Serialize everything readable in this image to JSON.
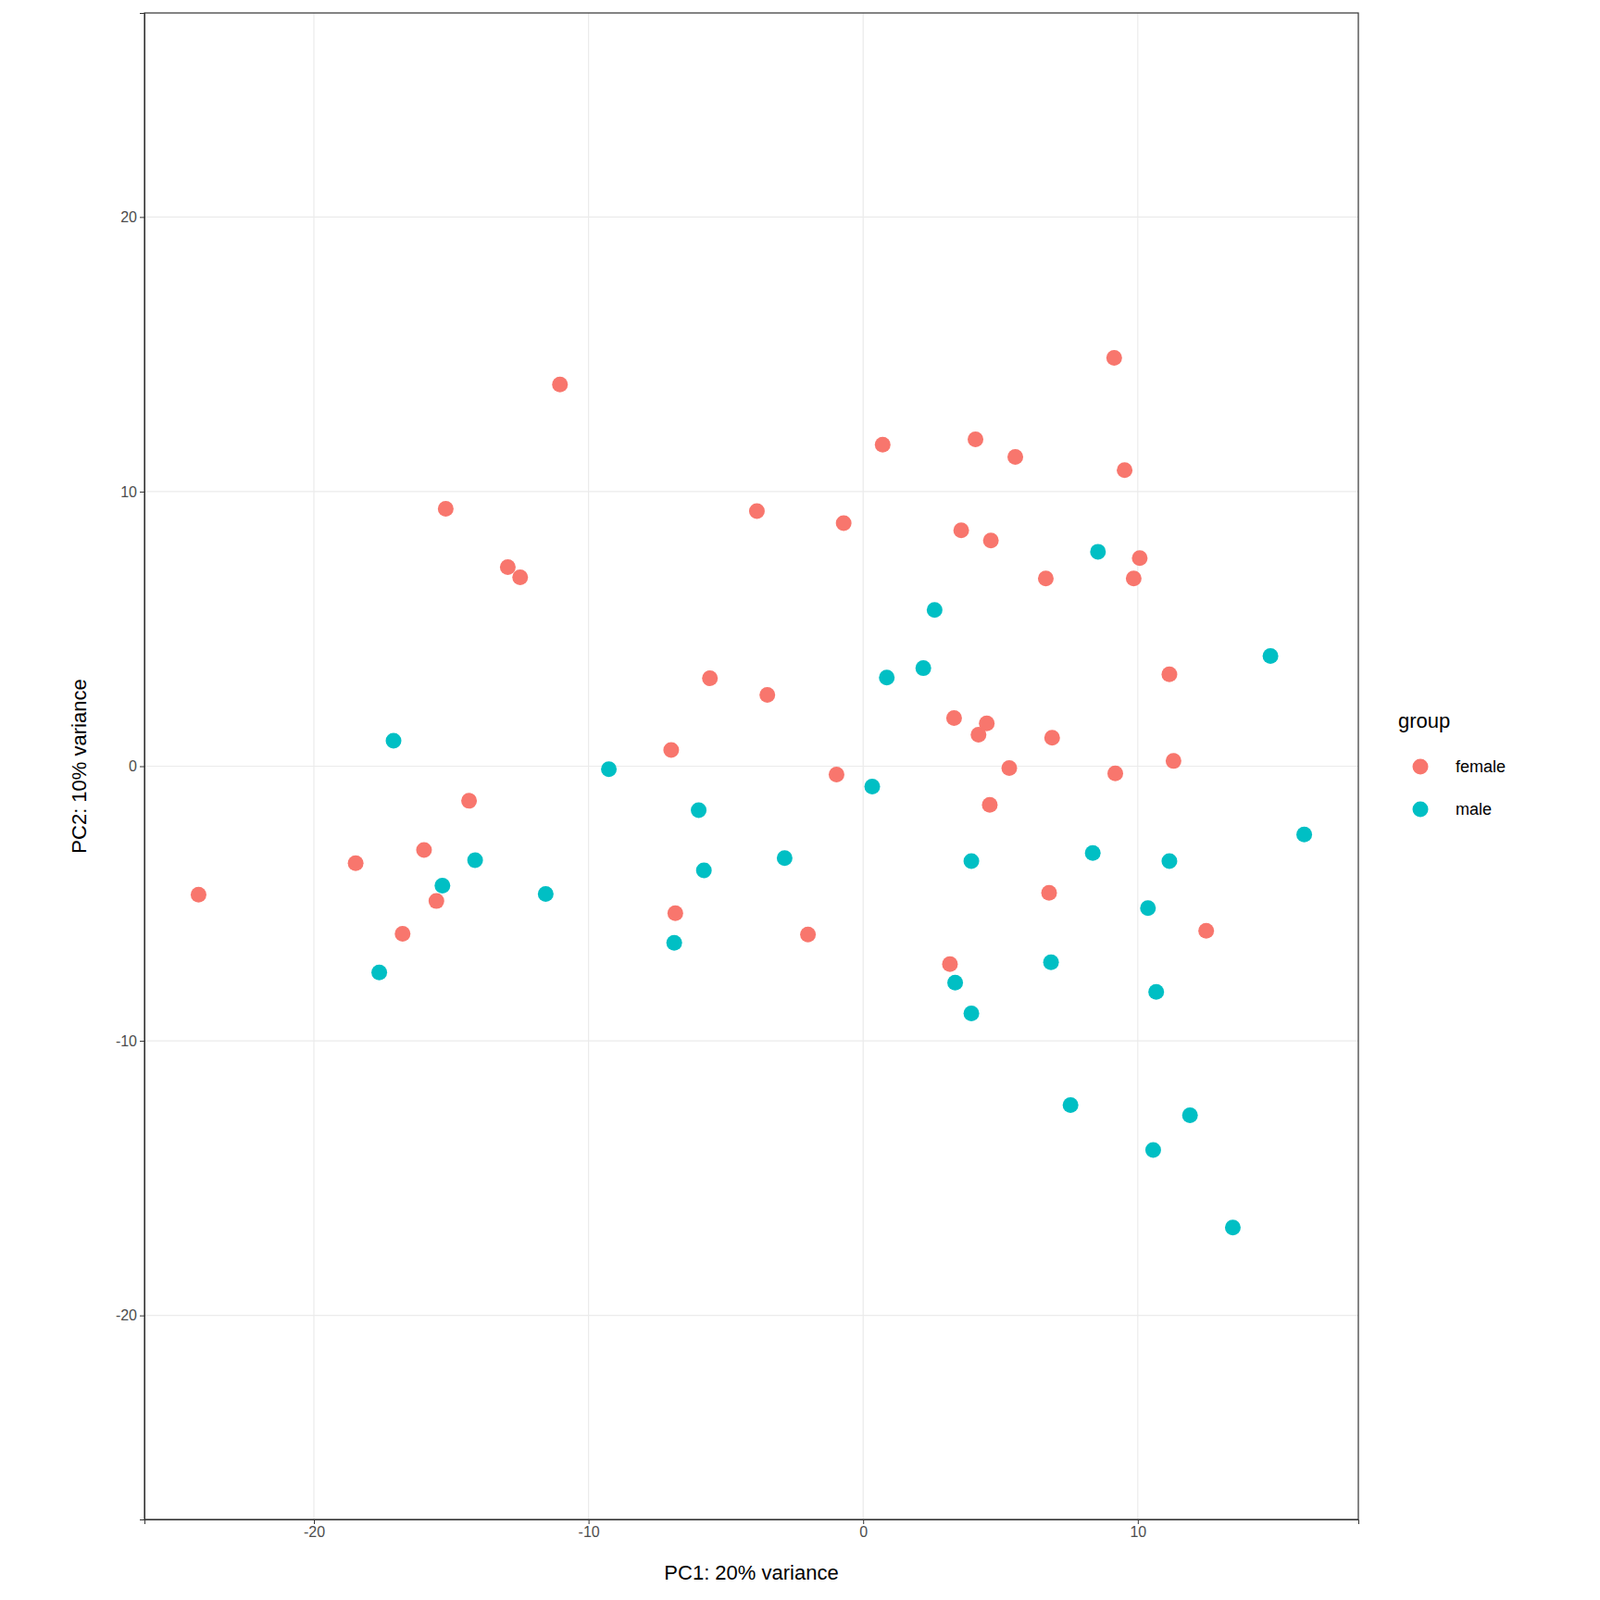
{
  "chart_data": {
    "type": "scatter",
    "x_label": "PC1: 20% variance",
    "y_label": "PC2: 10% variance",
    "legend_title": "group",
    "legend": "right",
    "grid": true,
    "marker": "circle",
    "xlim": [
      -26.17,
      18.03
    ],
    "ylim": [
      -27.43,
      27.43
    ],
    "xticks": [
      -20,
      -10,
      0,
      10
    ],
    "yticks": [
      -20,
      -10,
      0,
      10,
      20
    ],
    "series": [
      {
        "name": "female",
        "color": "#F8766D",
        "x": [
          -24.2,
          -18.48,
          -16.77,
          -15.99,
          -15.54,
          -15.2,
          -14.35,
          -12.94,
          -12.49,
          -11.04,
          -6.99,
          -6.84,
          -5.58,
          -3.87,
          -3.49,
          -2.01,
          -0.97,
          -0.71,
          0.71,
          3.16,
          3.31,
          3.57,
          4.09,
          4.2,
          4.5,
          4.65,
          4.61,
          5.32,
          5.54,
          6.65,
          6.77,
          6.88,
          9.14,
          9.18,
          9.52,
          9.85,
          10.07,
          11.15,
          11.3,
          12.49
        ],
        "values": [
          -4.68,
          -3.53,
          -6.1,
          -3.05,
          -4.91,
          9.37,
          -1.26,
          7.25,
          6.88,
          13.9,
          0.59,
          -5.35,
          3.2,
          9.29,
          2.6,
          -6.13,
          -0.3,
          8.85,
          11.71,
          -7.21,
          1.75,
          8.59,
          11.9,
          1.15,
          1.56,
          8.22,
          -1.41,
          -0.07,
          11.26,
          6.84,
          -4.61,
          1.04,
          14.87,
          -0.26,
          10.78,
          6.84,
          7.58,
          3.35,
          0.19,
          -5.99
        ]
      },
      {
        "name": "male",
        "color": "#00BFC4",
        "x": [
          -17.1,
          -17.62,
          -15.32,
          -14.13,
          -11.56,
          -9.26,
          -6.88,
          -5.99,
          -5.8,
          -2.86,
          0.33,
          0.86,
          2.19,
          2.6,
          3.35,
          3.94,
          3.94,
          6.84,
          7.55,
          8.36,
          8.55,
          10.37,
          10.56,
          10.67,
          11.15,
          11.9,
          13.46,
          14.83,
          16.06
        ],
        "values": [
          0.93,
          -7.51,
          -4.35,
          -3.42,
          -4.65,
          -0.11,
          -6.43,
          -1.6,
          -3.79,
          -3.35,
          -0.74,
          3.23,
          3.57,
          5.69,
          -7.88,
          -3.46,
          -9.0,
          -7.14,
          -12.34,
          -3.16,
          7.81,
          -5.17,
          -13.98,
          -8.22,
          -3.46,
          -12.71,
          -16.8,
          4.01,
          -2.49
        ]
      }
    ]
  }
}
